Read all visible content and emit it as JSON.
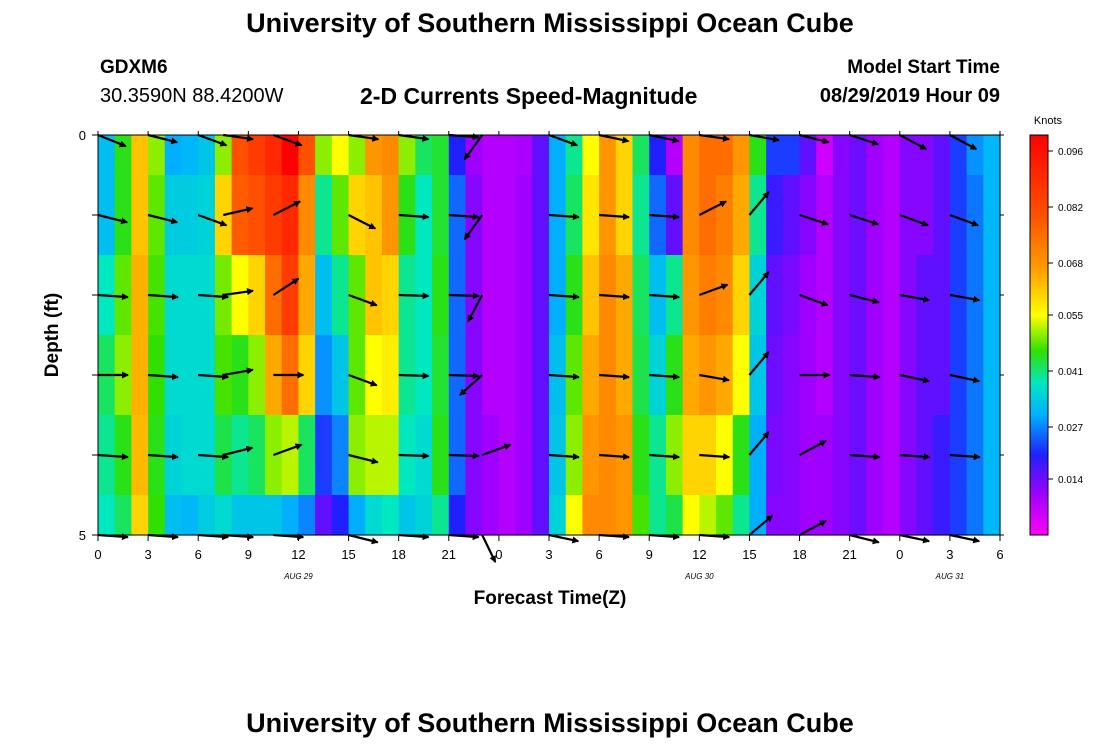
{
  "header": {
    "title": "University of Southern Mississippi Ocean Cube",
    "station": "GDXM6",
    "coordinates": "30.3590N 88.4200W",
    "subtitle": "2-D Currents Speed-Magnitude",
    "model_start_label": "Model Start Time",
    "model_start_value": "08/29/2019 Hour 09"
  },
  "footer": {
    "title": "University of Southern Mississippi Ocean Cube"
  },
  "chart_data": {
    "type": "heatmap",
    "title": "2-D Currents Speed-Magnitude",
    "xlabel": "Forecast Time(Z)",
    "ylabel": "Depth (ft)",
    "x_hours": [
      0,
      54
    ],
    "y_range": [
      0,
      5
    ],
    "x_tick_labels": [
      "0",
      "3",
      "6",
      "9",
      "12",
      "15",
      "18",
      "21",
      "0",
      "3",
      "6",
      "9",
      "12",
      "15",
      "18",
      "21",
      "0",
      "3",
      "6"
    ],
    "y_tick_labels": [
      "0",
      "5"
    ],
    "date_labels": [
      {
        "text": "AUG  29",
        "hour": 12
      },
      {
        "text": "AUG  30",
        "hour": 36
      },
      {
        "text": "AUG  31",
        "hour": 51
      }
    ],
    "colorbar": {
      "label": "Knots",
      "range": [
        0,
        0.1
      ],
      "ticks": [
        "0.096",
        "0.082",
        "0.068",
        "0.055",
        "0.041",
        "0.027",
        "0.014"
      ],
      "tick_values": [
        0.096,
        0.082,
        0.068,
        0.055,
        0.041,
        0.027,
        0.014
      ]
    },
    "columns": [
      {
        "h": 0,
        "v": [
          0.032,
          0.032,
          0.038,
          0.042,
          0.04,
          0.038
        ]
      },
      {
        "h": 1,
        "v": [
          0.045,
          0.045,
          0.048,
          0.05,
          0.045,
          0.042
        ]
      },
      {
        "h": 2,
        "v": [
          0.062,
          0.062,
          0.064,
          0.064,
          0.063,
          0.06
        ]
      },
      {
        "h": 3,
        "v": [
          0.05,
          0.048,
          0.047,
          0.046,
          0.045,
          0.046
        ]
      },
      {
        "h": 4,
        "v": [
          0.03,
          0.034,
          0.036,
          0.036,
          0.035,
          0.032
        ]
      },
      {
        "h": 5,
        "v": [
          0.031,
          0.034,
          0.036,
          0.036,
          0.036,
          0.031
        ]
      },
      {
        "h": 6,
        "v": [
          0.033,
          0.035,
          0.036,
          0.036,
          0.036,
          0.034
        ]
      },
      {
        "h": 7,
        "v": [
          0.05,
          0.06,
          0.049,
          0.047,
          0.043,
          0.036
        ]
      },
      {
        "h": 8,
        "v": [
          0.08,
          0.078,
          0.055,
          0.045,
          0.04,
          0.033
        ]
      },
      {
        "h": 9,
        "v": [
          0.085,
          0.08,
          0.06,
          0.05,
          0.042,
          0.033
        ]
      },
      {
        "h": 10,
        "v": [
          0.09,
          0.085,
          0.075,
          0.065,
          0.05,
          0.033
        ]
      },
      {
        "h": 11,
        "v": [
          0.1,
          0.09,
          0.085,
          0.075,
          0.052,
          0.03
        ]
      },
      {
        "h": 12,
        "v": [
          0.08,
          0.07,
          0.065,
          0.06,
          0.042,
          0.027
        ]
      },
      {
        "h": 13,
        "v": [
          0.05,
          0.04,
          0.032,
          0.028,
          0.022,
          0.015
        ]
      },
      {
        "h": 14,
        "v": [
          0.055,
          0.048,
          0.04,
          0.033,
          0.027,
          0.02
        ]
      },
      {
        "h": 15,
        "v": [
          0.05,
          0.06,
          0.048,
          0.048,
          0.05,
          0.03
        ]
      },
      {
        "h": 16,
        "v": [
          0.068,
          0.062,
          0.062,
          0.055,
          0.052,
          0.036
        ]
      },
      {
        "h": 17,
        "v": [
          0.07,
          0.068,
          0.06,
          0.057,
          0.052,
          0.038
        ]
      },
      {
        "h": 18,
        "v": [
          0.05,
          0.045,
          0.04,
          0.04,
          0.038,
          0.033
        ]
      },
      {
        "h": 19,
        "v": [
          0.042,
          0.038,
          0.038,
          0.038,
          0.036,
          0.035
        ]
      },
      {
        "h": 20,
        "v": [
          0.044,
          0.044,
          0.045,
          0.044,
          0.045,
          0.04
        ]
      },
      {
        "h": 21,
        "v": [
          0.02,
          0.025,
          0.025,
          0.025,
          0.025,
          0.02
        ]
      },
      {
        "h": 22,
        "v": [
          0.01,
          0.012,
          0.012,
          0.012,
          0.012,
          0.012
        ]
      },
      {
        "h": 23,
        "v": [
          0.008,
          0.008,
          0.008,
          0.008,
          0.01,
          0.01
        ]
      },
      {
        "h": 24,
        "v": [
          0.008,
          0.008,
          0.008,
          0.008,
          0.008,
          0.008
        ]
      },
      {
        "h": 25,
        "v": [
          0.009,
          0.01,
          0.01,
          0.01,
          0.01,
          0.01
        ]
      },
      {
        "h": 26,
        "v": [
          0.015,
          0.015,
          0.015,
          0.015,
          0.015,
          0.015
        ]
      },
      {
        "h": 27,
        "v": [
          0.03,
          0.03,
          0.03,
          0.032,
          0.033,
          0.035
        ]
      },
      {
        "h": 28,
        "v": [
          0.04,
          0.042,
          0.045,
          0.048,
          0.05,
          0.055
        ]
      },
      {
        "h": 29,
        "v": [
          0.055,
          0.058,
          0.062,
          0.065,
          0.068,
          0.07
        ]
      },
      {
        "h": 30,
        "v": [
          0.068,
          0.068,
          0.07,
          0.07,
          0.07,
          0.07
        ]
      },
      {
        "h": 31,
        "v": [
          0.06,
          0.06,
          0.065,
          0.065,
          0.068,
          0.068
        ]
      },
      {
        "h": 32,
        "v": [
          0.042,
          0.04,
          0.042,
          0.043,
          0.045,
          0.047
        ]
      },
      {
        "h": 33,
        "v": [
          0.02,
          0.025,
          0.032,
          0.035,
          0.04,
          0.04
        ]
      },
      {
        "h": 34,
        "v": [
          0.008,
          0.015,
          0.04,
          0.045,
          0.05,
          0.043
        ]
      },
      {
        "h": 35,
        "v": [
          0.07,
          0.07,
          0.068,
          0.065,
          0.06,
          0.055
        ]
      },
      {
        "h": 36,
        "v": [
          0.075,
          0.075,
          0.072,
          0.068,
          0.06,
          0.052
        ]
      },
      {
        "h": 37,
        "v": [
          0.075,
          0.072,
          0.07,
          0.065,
          0.055,
          0.048
        ]
      },
      {
        "h": 38,
        "v": [
          0.068,
          0.065,
          0.06,
          0.055,
          0.045,
          0.04
        ]
      },
      {
        "h": 39,
        "v": [
          0.045,
          0.04,
          0.035,
          0.033,
          0.03,
          0.03
        ]
      },
      {
        "h": 40,
        "v": [
          0.022,
          0.018,
          0.015,
          0.014,
          0.013,
          0.012
        ]
      },
      {
        "h": 41,
        "v": [
          0.022,
          0.015,
          0.013,
          0.012,
          0.012,
          0.012
        ]
      },
      {
        "h": 42,
        "v": [
          0.015,
          0.012,
          0.01,
          0.01,
          0.01,
          0.01
        ]
      },
      {
        "h": 43,
        "v": [
          0.005,
          0.008,
          0.008,
          0.008,
          0.01,
          0.01
        ]
      },
      {
        "h": 44,
        "v": [
          0.012,
          0.012,
          0.012,
          0.012,
          0.012,
          0.012
        ]
      },
      {
        "h": 45,
        "v": [
          0.014,
          0.014,
          0.014,
          0.014,
          0.014,
          0.014
        ]
      },
      {
        "h": 46,
        "v": [
          0.01,
          0.01,
          0.01,
          0.01,
          0.01,
          0.01
        ]
      },
      {
        "h": 47,
        "v": [
          0.008,
          0.008,
          0.008,
          0.008,
          0.008,
          0.008
        ]
      },
      {
        "h": 48,
        "v": [
          0.012,
          0.012,
          0.012,
          0.012,
          0.012,
          0.012
        ]
      },
      {
        "h": 49,
        "v": [
          0.012,
          0.012,
          0.015,
          0.015,
          0.015,
          0.015
        ]
      },
      {
        "h": 50,
        "v": [
          0.015,
          0.015,
          0.015,
          0.015,
          0.018,
          0.018
        ]
      },
      {
        "h": 51,
        "v": [
          0.022,
          0.022,
          0.022,
          0.022,
          0.022,
          0.022
        ]
      },
      {
        "h": 52,
        "v": [
          0.028,
          0.026,
          0.026,
          0.026,
          0.026,
          0.026
        ]
      },
      {
        "h": 53,
        "v": [
          0.031,
          0.031,
          0.031,
          0.031,
          0.031,
          0.031
        ]
      }
    ],
    "vectors": {
      "hours": [
        0,
        3,
        6,
        7.5,
        10.5,
        15,
        18,
        21,
        23,
        27,
        30,
        33,
        36,
        39,
        42,
        45,
        48,
        51
      ],
      "depths": [
        0,
        1,
        2,
        3,
        4,
        5
      ],
      "angles_deg": [
        [
          -22,
          -14,
          -20,
          -8,
          -20,
          -8,
          -8,
          -4,
          -126,
          -20,
          -12,
          -12,
          -8,
          -10,
          -14,
          -18,
          -28,
          -28
        ],
        [
          -14,
          -14,
          -20,
          13,
          27,
          -27,
          -4,
          -4,
          -126,
          -4,
          -4,
          -4,
          27,
          50,
          -18,
          -18,
          -20,
          -20
        ],
        [
          -4,
          -4,
          -4,
          8,
          33,
          -20,
          -2,
          -2,
          -118,
          -4,
          -4,
          -4,
          20,
          50,
          -20,
          -14,
          -10,
          -10
        ],
        [
          0,
          -4,
          -4,
          10,
          0,
          -20,
          -2,
          -2,
          -138,
          -4,
          -4,
          -4,
          -10,
          50,
          0,
          -4,
          -12,
          -12
        ],
        [
          -4,
          -4,
          -4,
          14,
          20,
          -14,
          -2,
          -2,
          20,
          -4,
          -4,
          -4,
          -4,
          50,
          28,
          -4,
          -4,
          -4
        ],
        [
          -4,
          -4,
          -4,
          -4,
          -4,
          -14,
          -4,
          -4,
          -64,
          -12,
          -4,
          -4,
          -4,
          40,
          28,
          -14,
          -12,
          -12
        ]
      ]
    }
  }
}
